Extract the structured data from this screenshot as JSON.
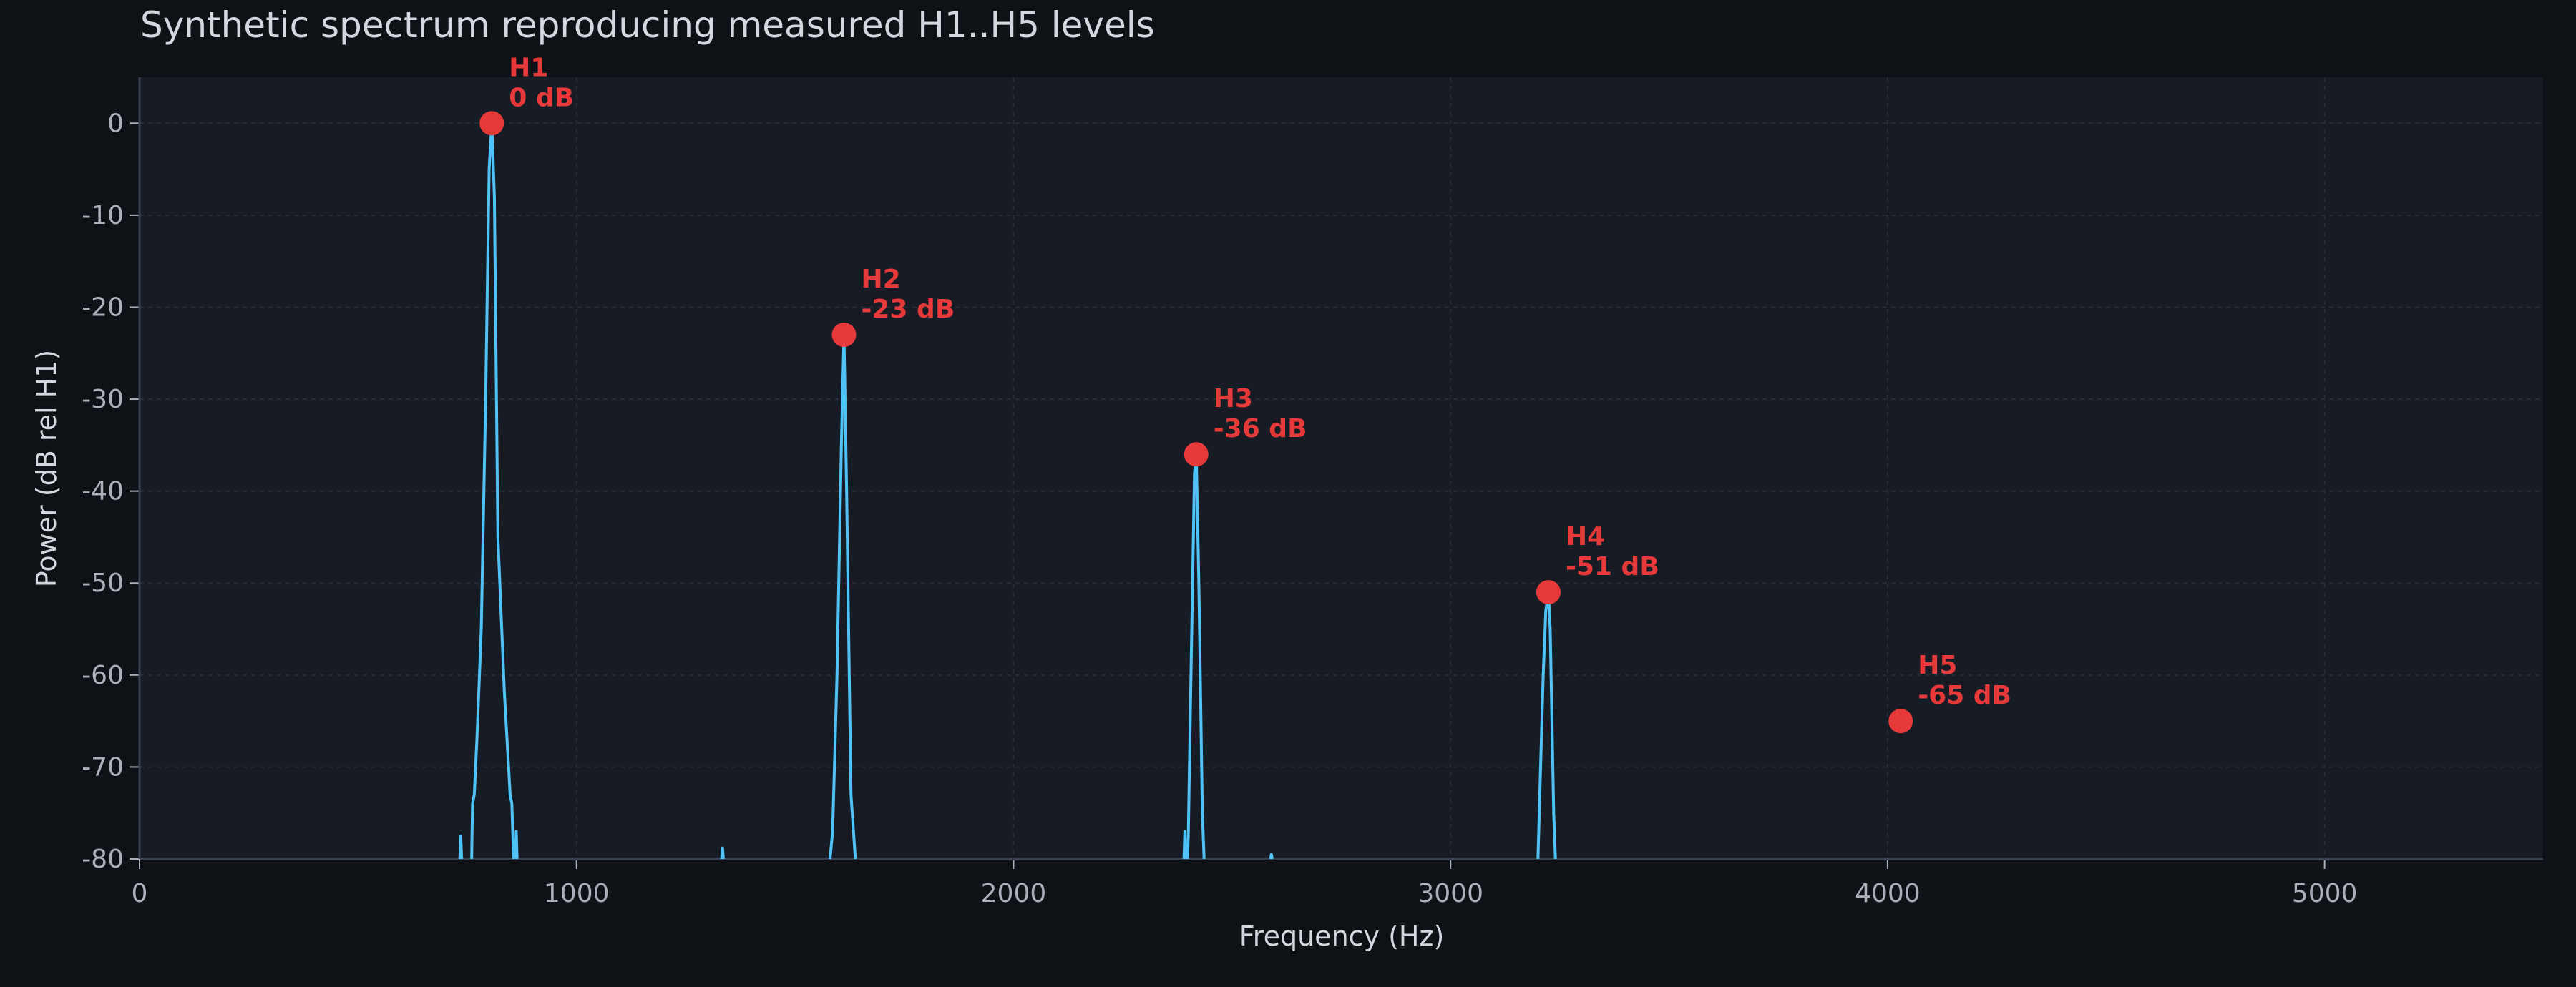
{
  "chart_data": {
    "type": "line",
    "title": "Synthetic spectrum reproducing measured H1..H5 levels",
    "xlabel": "Frequency (Hz)",
    "ylabel": "Power (dB rel H1)",
    "xlim": [
      0,
      5500
    ],
    "ylim": [
      -80,
      5
    ],
    "xticks": [
      0,
      1000,
      2000,
      3000,
      4000,
      5000
    ],
    "yticks": [
      0,
      -10,
      -20,
      -30,
      -40,
      -50,
      -60,
      -70,
      -80
    ],
    "grid": true,
    "colors": {
      "background": "#0e1116",
      "plot_bg": "#171b24",
      "spectrum": "#4fc3f7",
      "markers": "#e5393a",
      "grid": "#262b35"
    },
    "spectrum_segments": [
      [
        [
          733,
          -80
        ],
        [
          735,
          -77.5
        ],
        [
          737,
          -80
        ]
      ],
      [
        [
          760,
          -80
        ],
        [
          762,
          -74
        ],
        [
          766,
          -73
        ],
        [
          772,
          -67
        ],
        [
          782,
          -55
        ],
        [
          792,
          -30
        ],
        [
          800,
          -5
        ],
        [
          806,
          0
        ],
        [
          812,
          -8
        ],
        [
          820,
          -45
        ],
        [
          835,
          -62
        ],
        [
          848,
          -73
        ],
        [
          852,
          -74
        ],
        [
          856,
          -80
        ]
      ],
      [
        [
          860,
          -80
        ],
        [
          862,
          -77
        ],
        [
          864,
          -80
        ]
      ],
      [
        [
          1332,
          -80
        ],
        [
          1334,
          -78.8
        ],
        [
          1336,
          -80
        ]
      ],
      [
        [
          1580,
          -80
        ],
        [
          1586,
          -77
        ],
        [
          1596,
          -60
        ],
        [
          1606,
          -35
        ],
        [
          1612,
          -23
        ],
        [
          1618,
          -40
        ],
        [
          1628,
          -73
        ],
        [
          1638,
          -80
        ]
      ],
      [
        [
          2390,
          -80
        ],
        [
          2392,
          -77
        ],
        [
          2394,
          -80
        ]
      ],
      [
        [
          2398,
          -80
        ],
        [
          2400,
          -77
        ],
        [
          2406,
          -60
        ],
        [
          2414,
          -38
        ],
        [
          2418,
          -36
        ],
        [
          2424,
          -50
        ],
        [
          2432,
          -75
        ],
        [
          2436,
          -80
        ]
      ],
      [
        [
          2588,
          -80
        ],
        [
          2590,
          -79.5
        ],
        [
          2592,
          -80
        ]
      ],
      [
        [
          3200,
          -80
        ],
        [
          3212,
          -60
        ],
        [
          3218,
          -53
        ],
        [
          3224,
          -51
        ],
        [
          3228,
          -55
        ],
        [
          3236,
          -75
        ],
        [
          3240,
          -80
        ]
      ]
    ],
    "harmonics": [
      {
        "label": "H1",
        "value_label": "0 dB",
        "freq": 806,
        "db": 0
      },
      {
        "label": "H2",
        "value_label": "-23 dB",
        "freq": 1612,
        "db": -23
      },
      {
        "label": "H3",
        "value_label": "-36 dB",
        "freq": 2418,
        "db": -36
      },
      {
        "label": "H4",
        "value_label": "-51 dB",
        "freq": 3224,
        "db": -51
      },
      {
        "label": "H5",
        "value_label": "-65 dB",
        "freq": 4030,
        "db": -65
      }
    ]
  }
}
